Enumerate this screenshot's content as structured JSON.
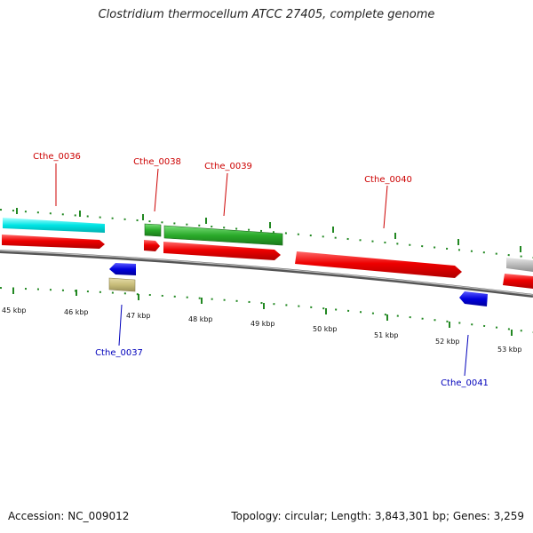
{
  "title": "Clostridium thermocellum ATCC 27405, complete genome",
  "footer": {
    "accession": "Accession: NC_009012",
    "summary": "Topology: circular; Length: 3,843,301 bp; Genes: 3,259"
  },
  "ruler": {
    "ticks": [
      "45 kbp",
      "46 kbp",
      "47 kbp",
      "48 kbp",
      "49 kbp",
      "50 kbp",
      "51 kbp",
      "52 kbp",
      "53 kbp"
    ]
  },
  "colors": {
    "cds": "#ee0000",
    "rna_cyan": "#00e5e5",
    "rna_green": "#2aaa2a",
    "reverse": "#0000dd",
    "misc": "#c8bd7a",
    "grey": "#bbbbbb",
    "tick": "#228822",
    "label_forward": "#cc0000",
    "label_reverse": "#0000bb"
  },
  "labels": {
    "forward": [
      "Cthe_0036",
      "Cthe_0038",
      "Cthe_0039",
      "Cthe_0040"
    ],
    "reverse": [
      "Cthe_0037",
      "Cthe_0041"
    ]
  }
}
